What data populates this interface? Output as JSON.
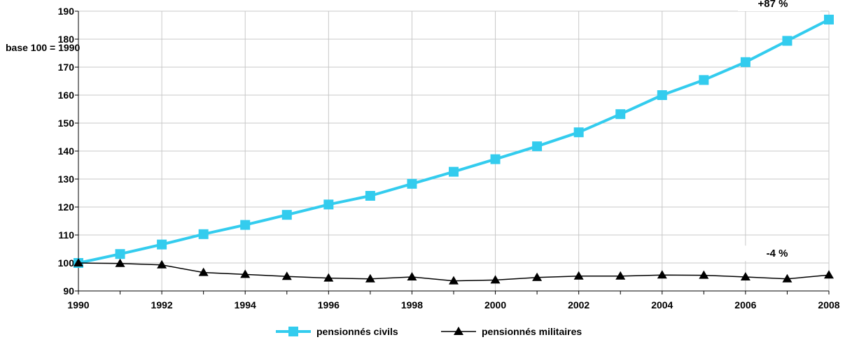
{
  "chart_data": {
    "type": "line",
    "title": "",
    "xlabel": "",
    "ylabel": "base 100 = 1990",
    "ylim": [
      90,
      190
    ],
    "yticks": [
      90,
      100,
      110,
      120,
      130,
      140,
      150,
      160,
      170,
      180,
      190
    ],
    "xlim": [
      1990,
      2008
    ],
    "xticks": [
      1990,
      1992,
      1994,
      1996,
      1998,
      2000,
      2002,
      2004,
      2006,
      2008
    ],
    "grid": true,
    "legend": "bottom",
    "x": [
      1990,
      1991,
      1992,
      1993,
      1994,
      1995,
      1996,
      1997,
      1998,
      1999,
      2000,
      2001,
      2002,
      2003,
      2004,
      2005,
      2006,
      2007,
      2008
    ],
    "series": [
      {
        "name": "pensionnés civils",
        "color": "#33CCEE",
        "marker": "square",
        "values": [
          100,
          103.2,
          106.6,
          110.3,
          113.6,
          117.2,
          120.9,
          124.0,
          128.3,
          132.6,
          137.1,
          141.7,
          146.7,
          153.2,
          160.0,
          165.4,
          171.8,
          179.4,
          187.0
        ]
      },
      {
        "name": "pensionnés militaires",
        "color": "#000000",
        "marker": "triangle",
        "values": [
          100,
          99.8,
          99.3,
          96.6,
          95.9,
          95.2,
          94.6,
          94.3,
          95.0,
          93.6,
          93.9,
          94.8,
          95.3,
          95.3,
          95.7,
          95.6,
          95.0,
          94.3,
          95.7
        ]
      }
    ],
    "annotations": [
      {
        "text": "+87 %",
        "series": 0
      },
      {
        "text": "-4 %",
        "series": 1
      }
    ]
  }
}
